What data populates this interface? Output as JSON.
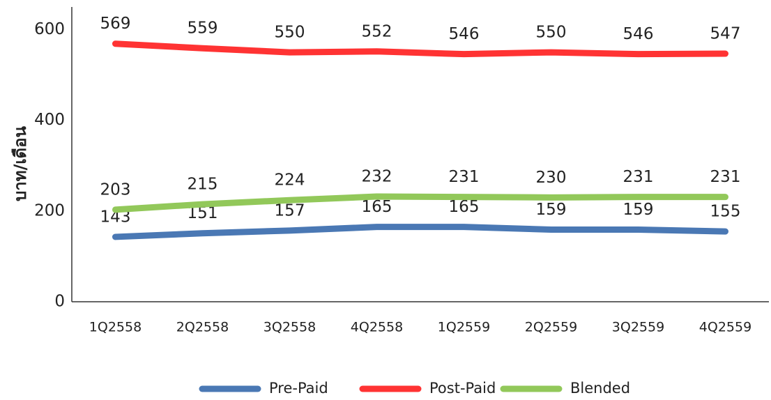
{
  "chart_data": {
    "type": "line",
    "y_label": "บาท/เดือน",
    "categories": [
      "1Q2558",
      "2Q2558",
      "3Q2558",
      "4Q2558",
      "1Q2559",
      "2Q2559",
      "3Q2559",
      "4Q2559"
    ],
    "series": [
      {
        "name": "Pre-Paid",
        "color": "#4a78b4",
        "values": [
          143,
          151,
          157,
          165,
          165,
          159,
          159,
          155
        ]
      },
      {
        "name": "Post-Paid",
        "color": "#ff3333",
        "values": [
          569,
          559,
          550,
          552,
          546,
          550,
          546,
          547
        ]
      },
      {
        "name": "Blended",
        "color": "#92c85a",
        "values": [
          203,
          215,
          224,
          232,
          231,
          230,
          231,
          231
        ]
      }
    ],
    "ylim": [
      0,
      650
    ],
    "yticks": [
      0,
      200,
      400,
      600
    ],
    "grid": false,
    "legend": "bottom"
  }
}
